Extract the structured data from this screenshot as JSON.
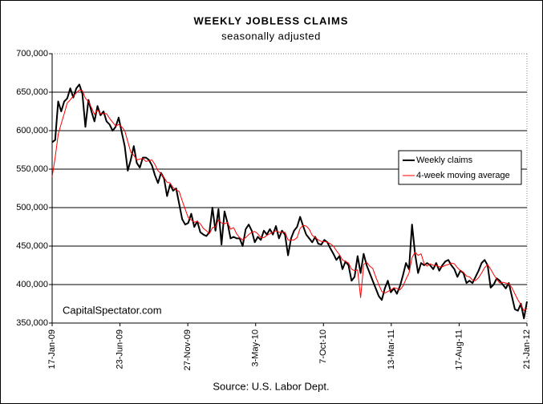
{
  "chart_data": {
    "type": "line",
    "title": "WEEKLY JOBLESS CLAIMS",
    "subtitle": "seasonally adjusted",
    "annotation": "CapitalSpectator.com",
    "source": "Source: U.S. Labor Dept.",
    "x": [
      "17-Jan-09",
      "24-Jan-09",
      "31-Jan-09",
      "7-Feb-09",
      "14-Feb-09",
      "21-Feb-09",
      "28-Feb-09",
      "7-Mar-09",
      "14-Mar-09",
      "21-Mar-09",
      "28-Mar-09",
      "4-Apr-09",
      "11-Apr-09",
      "18-Apr-09",
      "25-Apr-09",
      "2-May-09",
      "9-May-09",
      "16-May-09",
      "23-May-09",
      "30-May-09",
      "6-Jun-09",
      "13-Jun-09",
      "20-Jun-09",
      "27-Jun-09",
      "4-Jul-09",
      "11-Jul-09",
      "18-Jul-09",
      "25-Jul-09",
      "1-Aug-09",
      "8-Aug-09",
      "15-Aug-09",
      "22-Aug-09",
      "29-Aug-09",
      "5-Sep-09",
      "12-Sep-09",
      "19-Sep-09",
      "26-Sep-09",
      "3-Oct-09",
      "10-Oct-09",
      "17-Oct-09",
      "24-Oct-09",
      "31-Oct-09",
      "7-Nov-09",
      "14-Nov-09",
      "21-Nov-09",
      "28-Nov-09",
      "5-Dec-09",
      "12-Dec-09",
      "19-Dec-09",
      "26-Dec-09",
      "2-Jan-10",
      "9-Jan-10",
      "16-Jan-10",
      "23-Jan-10",
      "30-Jan-10",
      "6-Feb-10",
      "13-Feb-10",
      "20-Feb-10",
      "27-Feb-10",
      "6-Mar-10",
      "13-Mar-10",
      "20-Mar-10",
      "27-Mar-10",
      "3-Apr-10",
      "10-Apr-10",
      "17-Apr-10",
      "24-Apr-10",
      "1-May-10",
      "8-May-10",
      "15-May-10",
      "22-May-10",
      "29-May-10",
      "5-Jun-10",
      "12-Jun-10",
      "19-Jun-10",
      "26-Jun-10",
      "3-Jul-10",
      "10-Jul-10",
      "17-Jul-10",
      "24-Jul-10",
      "31-Jul-10",
      "7-Aug-10",
      "14-Aug-10",
      "21-Aug-10",
      "28-Aug-10",
      "4-Sep-10",
      "11-Sep-10",
      "18-Sep-10",
      "25-Sep-10",
      "2-Oct-10",
      "9-Oct-10",
      "16-Oct-10",
      "23-Oct-10",
      "30-Oct-10",
      "6-Nov-10",
      "13-Nov-10",
      "20-Nov-10",
      "27-Nov-10",
      "4-Dec-10",
      "11-Dec-10",
      "18-Dec-10",
      "25-Dec-10",
      "1-Jan-11",
      "8-Jan-11",
      "15-Jan-11",
      "22-Jan-11",
      "29-Jan-11",
      "5-Feb-11",
      "12-Feb-11",
      "19-Feb-11",
      "26-Feb-11",
      "5-Mar-11",
      "12-Mar-11",
      "19-Mar-11",
      "26-Mar-11",
      "2-Apr-11",
      "9-Apr-11",
      "16-Apr-11",
      "23-Apr-11",
      "30-Apr-11",
      "7-May-11",
      "14-May-11",
      "21-May-11",
      "28-May-11",
      "4-Jun-11",
      "11-Jun-11",
      "18-Jun-11",
      "25-Jun-11",
      "2-Jul-11",
      "9-Jul-11",
      "16-Jul-11",
      "23-Jul-11",
      "30-Jul-11",
      "6-Aug-11",
      "13-Aug-11",
      "20-Aug-11",
      "27-Aug-11",
      "3-Sep-11",
      "10-Sep-11",
      "17-Sep-11",
      "24-Sep-11",
      "1-Oct-11",
      "8-Oct-11",
      "15-Oct-11",
      "22-Oct-11",
      "29-Oct-11",
      "5-Nov-11",
      "12-Nov-11",
      "19-Nov-11",
      "26-Nov-11",
      "3-Dec-11",
      "10-Dec-11",
      "17-Dec-11",
      "24-Dec-11",
      "31-Dec-11",
      "7-Jan-12",
      "14-Jan-12",
      "21-Jan-12"
    ],
    "series": [
      {
        "name": "Weekly claims",
        "color": "#000000",
        "width": 2,
        "values": [
          585000,
          588000,
          638000,
          625000,
          638000,
          642000,
          655000,
          643000,
          655000,
          660000,
          648000,
          605000,
          640000,
          625000,
          612000,
          632000,
          620000,
          625000,
          612000,
          608000,
          600000,
          605000,
          617000,
          598000,
          580000,
          548000,
          562000,
          580000,
          558000,
          552000,
          565000,
          565000,
          562000,
          555000,
          542000,
          532000,
          545000,
          538000,
          515000,
          530000,
          522000,
          525000,
          505000,
          485000,
          478000,
          480000,
          492000,
          475000,
          482000,
          468000,
          465000,
          463000,
          468000,
          500000,
          470000,
          498000,
          452000,
          495000,
          480000,
          460000,
          462000,
          460000,
          460000,
          450000,
          472000,
          478000,
          470000,
          455000,
          462000,
          458000,
          470000,
          465000,
          472000,
          465000,
          476000,
          460000,
          470000,
          465000,
          438000,
          460000,
          470000,
          475000,
          488000,
          476000,
          465000,
          460000,
          455000,
          462000,
          453000,
          452000,
          458000,
          455000,
          447000,
          440000,
          432000,
          437000,
          420000,
          430000,
          425000,
          405000,
          410000,
          437000,
          415000,
          440000,
          425000,
          415000,
          405000,
          395000,
          385000,
          380000,
          395000,
          405000,
          390000,
          395000,
          388000,
          398000,
          412000,
          428000,
          420000,
          478000,
          440000,
          415000,
          428000,
          425000,
          428000,
          425000,
          420000,
          428000,
          418000,
          425000,
          430000,
          432000,
          425000,
          420000,
          410000,
          418000,
          415000,
          402000,
          405000,
          402000,
          410000,
          418000,
          428000,
          432000,
          425000,
          396000,
          400000,
          408000,
          405000,
          400000,
          395000,
          402000,
          385000,
          368000,
          366000,
          375000,
          356000,
          378000
        ]
      },
      {
        "name": "4-week moving average",
        "color": "#ff0000",
        "width": 1,
        "values": [
          540000,
          565000,
          595000,
          609000,
          622000,
          636000,
          640000,
          645000,
          649000,
          653000,
          652000,
          642000,
          638000,
          630000,
          621000,
          627000,
          622000,
          622000,
          622000,
          616000,
          611000,
          606000,
          608000,
          605000,
          600000,
          586000,
          572000,
          568000,
          562000,
          563000,
          564000,
          560000,
          561000,
          562000,
          556000,
          548000,
          544000,
          539000,
          533000,
          532000,
          526000,
          523000,
          521000,
          509000,
          498000,
          487000,
          484000,
          481000,
          482000,
          479000,
          473000,
          470000,
          466000,
          474000,
          475000,
          484000,
          480000,
          479000,
          481000,
          472000,
          474000,
          466000,
          461000,
          458000,
          461000,
          465000,
          468000,
          469000,
          466000,
          461000,
          461000,
          464000,
          466000,
          468000,
          470000,
          468000,
          468000,
          468000,
          458000,
          458000,
          458000,
          461000,
          473000,
          477000,
          476000,
          472000,
          464000,
          461000,
          458000,
          456000,
          456000,
          455000,
          453000,
          450000,
          444000,
          439000,
          432000,
          430000,
          428000,
          420000,
          418000,
          419000,
          383000,
          426000,
          429000,
          424000,
          421000,
          410000,
          400000,
          391000,
          389000,
          391000,
          393000,
          396000,
          395000,
          393000,
          398000,
          407000,
          415000,
          435000,
          442000,
          438000,
          440000,
          427000,
          424000,
          427000,
          425000,
          425000,
          423000,
          423000,
          425000,
          426000,
          428000,
          427000,
          422000,
          418000,
          416000,
          411000,
          410000,
          406000,
          405000,
          409000,
          415000,
          422000,
          426000,
          420000,
          413000,
          407000,
          402000,
          403000,
          402000,
          401000,
          396000,
          388000,
          380000,
          374000,
          366000,
          369000
        ]
      }
    ],
    "xlim": [
      "17-Jan-09",
      "21-Jan-12"
    ],
    "xticks": [
      "17-Jan-09",
      "23-Jun-09",
      "27-Nov-09",
      "3-May-10",
      "7-Oct-10",
      "13-Mar-11",
      "17-Aug-11",
      "21-Jan-12"
    ],
    "ylim": [
      350000,
      700000
    ],
    "yticks": [
      {
        "value": 350000,
        "label": "350,000"
      },
      {
        "value": 400000,
        "label": "400,000"
      },
      {
        "value": 450000,
        "label": "450,000"
      },
      {
        "value": 500000,
        "label": "500,000"
      },
      {
        "value": 550000,
        "label": "550,000"
      },
      {
        "value": 600000,
        "label": "600,000"
      },
      {
        "value": 650000,
        "label": "650,000"
      },
      {
        "value": 700000,
        "label": "700,000"
      }
    ],
    "grid": true,
    "legend": "right"
  }
}
